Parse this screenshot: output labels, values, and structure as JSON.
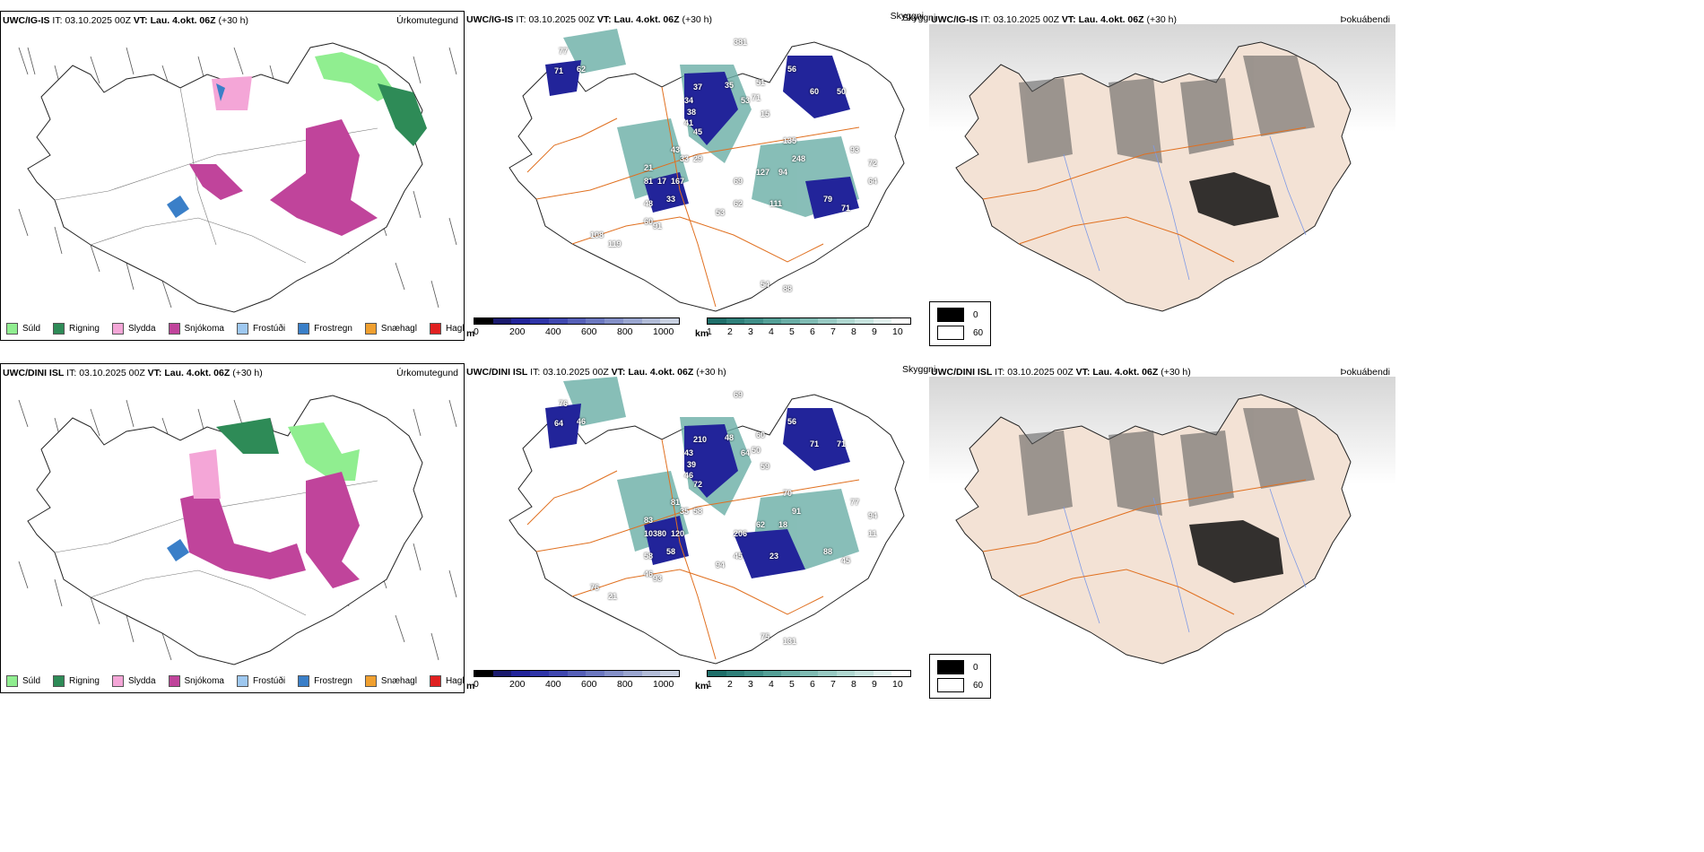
{
  "rows": [
    {
      "precip": {
        "model": "UWC/IG-IS",
        "it_label": "IT:",
        "it_value": "03.10.2025 00Z",
        "vt_label": "VT: Lau. 4.okt. 06Z",
        "lead": "(+30 h)",
        "panel_label": "Úrkomutegund"
      },
      "vis": {
        "model": "UWC/IG-IS",
        "it_label": "IT:",
        "it_value": "03.10.2025 00Z",
        "vt_label": "VT: Lau. 4.okt. 06Z",
        "lead": "(+30 h)",
        "panel_label": "Skyggni",
        "numbers": [
          "77",
          "71",
          "62",
          "381",
          "37",
          "34",
          "38",
          "41",
          "35",
          "53",
          "51",
          "71",
          "56",
          "60",
          "50",
          "15",
          "45",
          "43",
          "33",
          "29",
          "21",
          "81",
          "17",
          "167",
          "135",
          "248",
          "94",
          "127",
          "69",
          "33",
          "48",
          "60",
          "62",
          "53",
          "111",
          "79",
          "71",
          "93",
          "72",
          "64",
          "91",
          "119",
          "108",
          "54",
          "88"
        ]
      },
      "fog": {
        "model": "UWC/IG-IS",
        "it_label": "IT:",
        "it_value": "03.10.2025 00Z",
        "vt_label": "VT: Lau. 4.okt. 06Z",
        "lead": "(+30 h)",
        "panel_label": "Þokuábendi"
      }
    },
    {
      "precip": {
        "model": "UWC/DINI ISL",
        "it_label": "IT:",
        "it_value": "03.10.2025 00Z",
        "vt_label": "VT: Lau. 4.okt. 06Z",
        "lead": "(+30 h)",
        "panel_label": "Úrkomutegund"
      },
      "vis": {
        "model": "UWC/DINI ISL",
        "it_label": "IT:",
        "it_value": "03.10.2025 00Z",
        "vt_label": "VT: Lau. 4.okt. 06Z",
        "lead": "(+30 h)",
        "panel_label": "Skyggni",
        "numbers": [
          "76",
          "64",
          "46",
          "69",
          "210",
          "43",
          "39",
          "46",
          "48",
          "64",
          "60",
          "50",
          "56",
          "71",
          "71",
          "59",
          "72",
          "81",
          "35",
          "58",
          "83",
          "103",
          "80",
          "120",
          "70",
          "91",
          "18",
          "62",
          "206",
          "58",
          "58",
          "46",
          "45",
          "94",
          "23",
          "88",
          "45",
          "77",
          "94",
          "11",
          "93",
          "21",
          "76",
          "75",
          "131"
        ]
      },
      "fog": {
        "model": "UWC/DINI ISL",
        "it_label": "IT:",
        "it_value": "03.10.2025 00Z",
        "vt_label": "VT: Lau. 4.okt. 06Z",
        "lead": "(+30 h)",
        "panel_label": "Þokuábendi"
      }
    }
  ],
  "precip_legend": [
    {
      "label": "Súld",
      "color": "#90ee90"
    },
    {
      "label": "Rigning",
      "color": "#2e8b57"
    },
    {
      "label": "Slydda",
      "color": "#f4a6d7"
    },
    {
      "label": "Snjókoma",
      "color": "#c0449b"
    },
    {
      "label": "Frostúði",
      "color": "#9ec8f0"
    },
    {
      "label": "Frostregn",
      "color": "#3a7fc8"
    },
    {
      "label": "Snæhagl",
      "color": "#f0a030"
    },
    {
      "label": "Haglél",
      "color": "#e02020"
    }
  ],
  "ceiling_scale": {
    "unit": "m",
    "ticks": [
      "0",
      "200",
      "400",
      "600",
      "800",
      "1000"
    ],
    "colors": [
      "#000000",
      "#1a1a6e",
      "#22249a",
      "#2f35a8",
      "#4048b0",
      "#5660b8",
      "#6c78c0",
      "#8490c8",
      "#9aa6d0",
      "#b2bcd8",
      "#c8d0e0"
    ]
  },
  "visibility_scale": {
    "unit": "km",
    "ticks": [
      "1",
      "2",
      "3",
      "4",
      "5",
      "6",
      "7",
      "8",
      "9",
      "10"
    ],
    "colors": [
      "#1f6f6a",
      "#2f807a",
      "#408f88",
      "#54a097",
      "#6aaea6",
      "#80bcb4",
      "#98cac3",
      "#b0d8d1",
      "#c8e4df",
      "#e2f1ee",
      "#ffffff"
    ]
  },
  "fog_scale": {
    "labels": [
      "0",
      "60"
    ],
    "colors": [
      "#000000",
      "#ffffff"
    ]
  },
  "colors": {
    "roads": "#e07020",
    "coast": "#222222",
    "land_fog": "#f3e2d5",
    "rivers": "#7f9ae6"
  }
}
